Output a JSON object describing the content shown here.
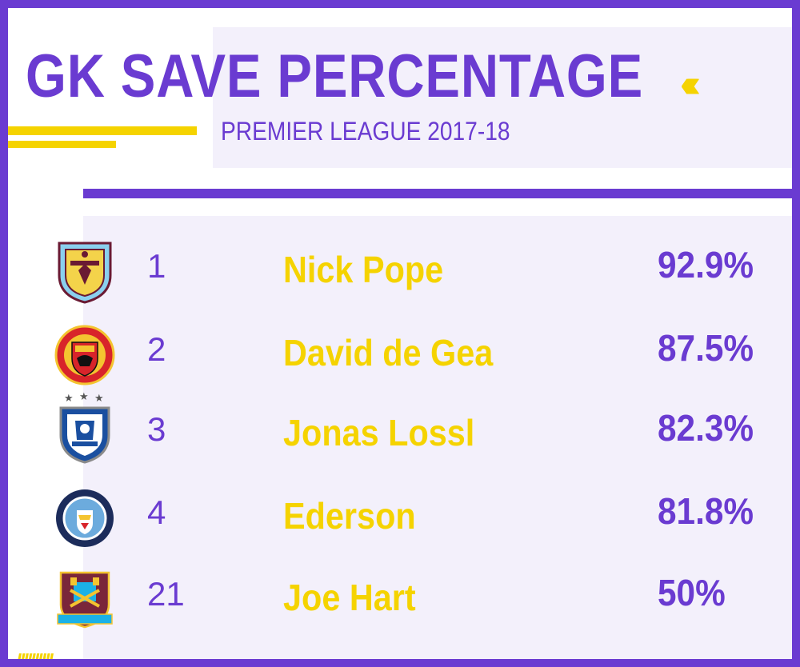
{
  "header": {
    "title": "GK SAVE PERCENTAGE",
    "subtitle": "PREMIER LEAGUE 2017-18"
  },
  "colors": {
    "purple": "#6a3bd1",
    "yellow": "#f5d300",
    "panel": "#f3f0fb"
  },
  "rows": [
    {
      "rank": "1",
      "name": "Nick Pope",
      "pct": "92.9%",
      "crest": "burnley-crest-icon"
    },
    {
      "rank": "2",
      "name": "David de Gea",
      "pct": "87.5%",
      "crest": "manchester-united-crest-icon"
    },
    {
      "rank": "3",
      "name": "Jonas Lossl",
      "pct": "82.3%",
      "crest": "huddersfield-crest-icon"
    },
    {
      "rank": "4",
      "name": "Ederson",
      "pct": "81.8%",
      "crest": "manchester-city-crest-icon"
    },
    {
      "rank": "21",
      "name": "Joe Hart",
      "pct": "50%",
      "crest": "west-ham-crest-icon"
    }
  ]
}
